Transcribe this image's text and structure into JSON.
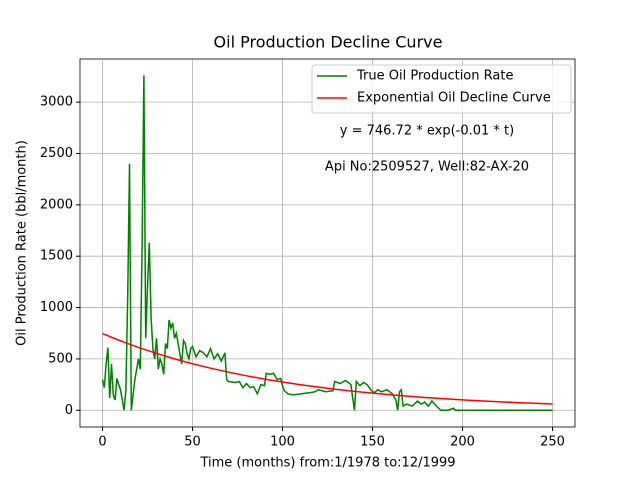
{
  "chart_data": {
    "type": "line",
    "title": "Oil Production Decline Curve",
    "x_label": "Time (months) from:1/1978 to:12/1999",
    "y_label": "Oil Production Rate (bbl/month)",
    "annotations": [
      "y = 746.72 * exp(-0.01 * t)",
      "Api No:2509527, Well:82-AX-20"
    ],
    "xlim": [
      -12.5,
      262.5
    ],
    "ylim": [
      -163,
      3420
    ],
    "xticks": [
      0,
      50,
      100,
      150,
      200,
      250
    ],
    "yticks": [
      0,
      500,
      1000,
      1500,
      2000,
      2500,
      3000
    ],
    "grid": true,
    "legend": "upper right",
    "series": [
      {
        "name": "True Oil Production Rate",
        "color": "#008000",
        "x": [
          0,
          1,
          2,
          3,
          4,
          5,
          6,
          7,
          8,
          9,
          10,
          11,
          12,
          13,
          14,
          15,
          16,
          17,
          18,
          19,
          20,
          21,
          22,
          23,
          24,
          25,
          26,
          27,
          28,
          29,
          30,
          31,
          32,
          33,
          34,
          35,
          36,
          37,
          38,
          39,
          40,
          41,
          42,
          43,
          44,
          45,
          46,
          47,
          48,
          49,
          50,
          52,
          54,
          56,
          58,
          60,
          62,
          64,
          66,
          68,
          69,
          70,
          74,
          76,
          78,
          80,
          82,
          84,
          86,
          88,
          90,
          91,
          93,
          95,
          97,
          99,
          100,
          101,
          103,
          106,
          110,
          115,
          118,
          120,
          124,
          128,
          129,
          132,
          135,
          138,
          139,
          140,
          141,
          143,
          145,
          147,
          149,
          151,
          153,
          155,
          158,
          161,
          163,
          164,
          165,
          166,
          167,
          169,
          172,
          175,
          177,
          179,
          181,
          183,
          185,
          188,
          192,
          195,
          196,
          250
        ],
        "values": [
          300,
          220,
          450,
          610,
          120,
          450,
          150,
          100,
          310,
          250,
          200,
          100,
          0,
          200,
          1100,
          2400,
          0,
          150,
          300,
          400,
          500,
          400,
          1600,
          3260,
          700,
          1200,
          1630,
          900,
          600,
          500,
          700,
          400,
          500,
          450,
          350,
          650,
          600,
          880,
          800,
          850,
          700,
          750,
          650,
          550,
          450,
          680,
          650,
          550,
          500,
          600,
          620,
          520,
          580,
          560,
          520,
          600,
          500,
          550,
          480,
          560,
          300,
          280,
          270,
          280,
          220,
          260,
          220,
          230,
          160,
          250,
          240,
          360,
          350,
          360,
          300,
          310,
          240,
          190,
          160,
          150,
          160,
          170,
          180,
          200,
          180,
          190,
          280,
          260,
          290,
          250,
          120,
          0,
          280,
          240,
          270,
          250,
          200,
          170,
          200,
          180,
          200,
          160,
          100,
          0,
          180,
          200,
          40,
          60,
          40,
          90,
          60,
          80,
          40,
          90,
          50,
          0,
          0,
          20,
          0,
          0
        ]
      },
      {
        "name": "Exponential Oil Decline Curve",
        "color": "#ff0000",
        "x": [
          0,
          10,
          20,
          30,
          40,
          50,
          60,
          70,
          80,
          90,
          100,
          110,
          120,
          130,
          140,
          150,
          160,
          170,
          180,
          190,
          200,
          210,
          220,
          230,
          240,
          250
        ],
        "values": [
          746.7,
          675.6,
          611.4,
          553.2,
          500.5,
          452.9,
          409.8,
          370.8,
          335.5,
          303.6,
          274.7,
          248.6,
          224.9,
          203.5,
          184.1,
          166.6,
          150.8,
          136.4,
          123.4,
          111.7,
          101.1,
          91.4,
          82.7,
          74.9,
          67.7,
          61.3
        ]
      }
    ]
  }
}
